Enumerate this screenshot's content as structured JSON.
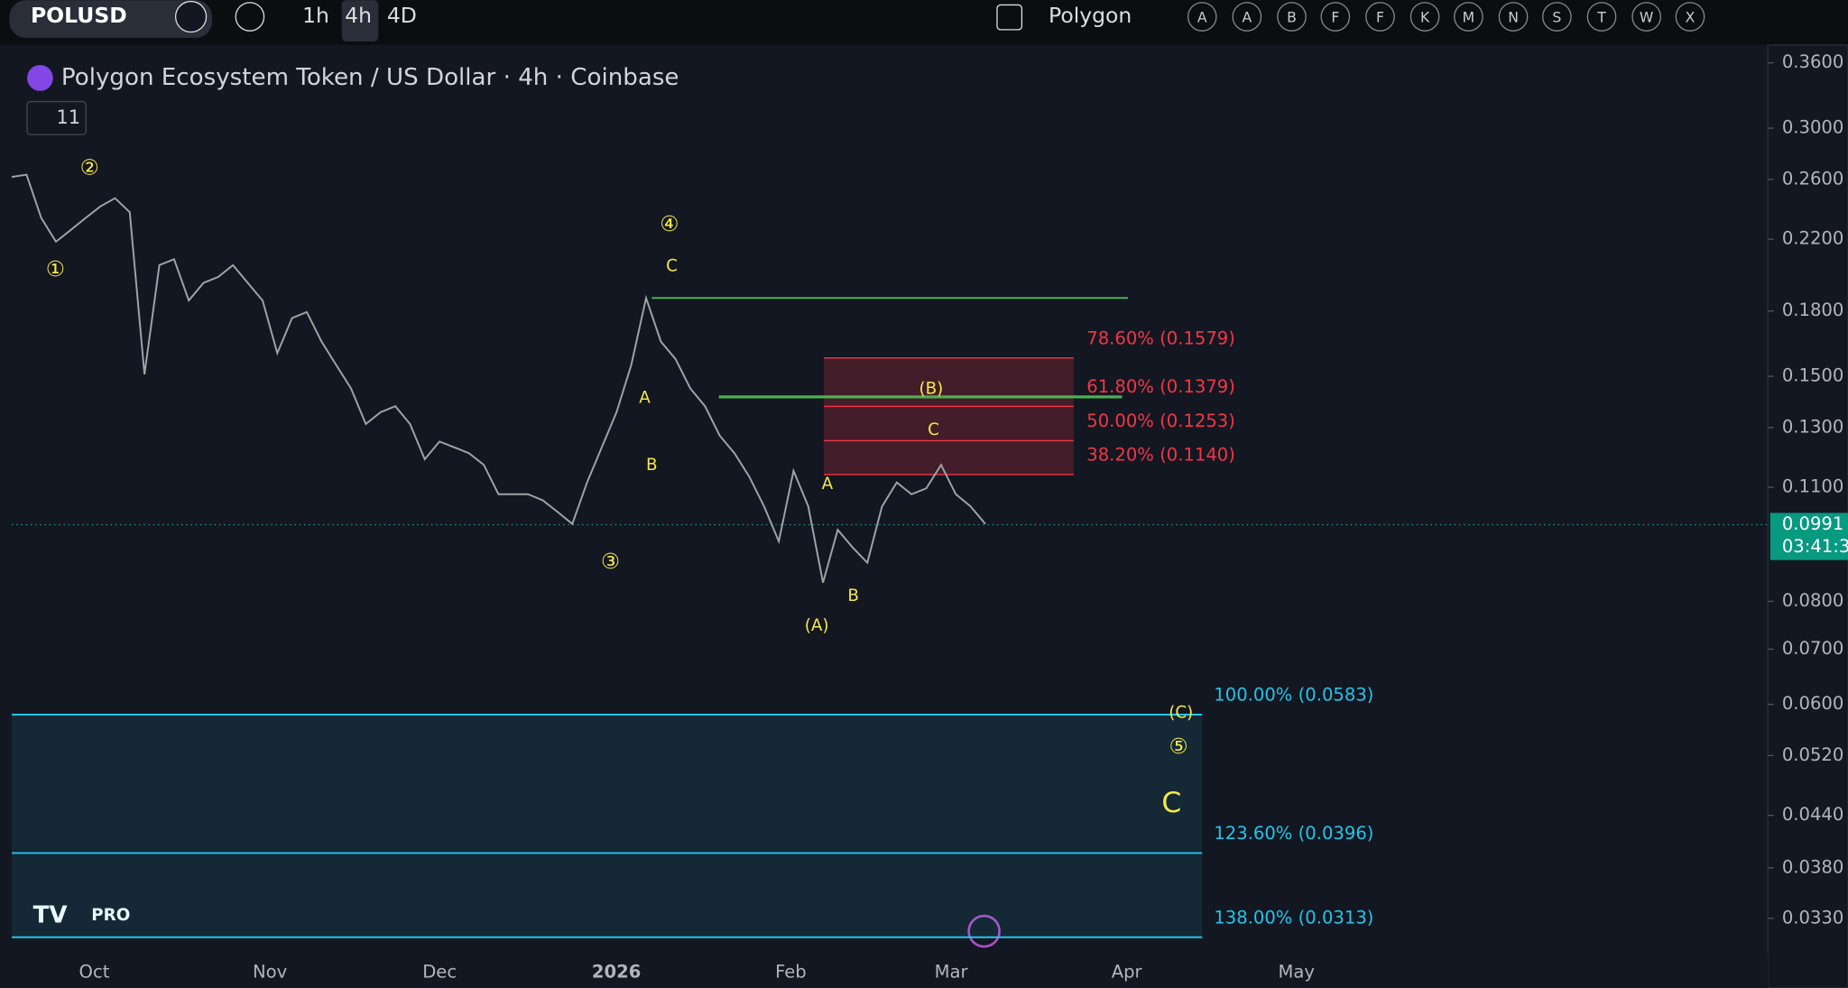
{
  "toolbar": {
    "symbol": "POLUSD",
    "intervals": [
      "1h",
      "4h",
      "4D"
    ],
    "drawing_set": "Polygon",
    "letters": [
      "A",
      "A",
      "B",
      "F",
      "F",
      "K",
      "M",
      "N",
      "S",
      "T",
      "W",
      "X"
    ]
  },
  "legend": {
    "indicator_count": "11"
  },
  "badge": "PRO",
  "chart_data": {
    "type": "line",
    "title": "Polygon Ecosystem Token / US Dollar · 4h · Coinbase",
    "x_labels": [
      "Oct",
      "Nov",
      "Dec",
      "2026",
      "Feb",
      "Mar",
      "Apr",
      "May"
    ],
    "log_scale": true,
    "grid": false,
    "color": "#9aa7a4",
    "values": [
      0.2618,
      0.2635,
      0.2334,
      0.2185,
      0.2258,
      0.2334,
      0.2411,
      0.2467,
      0.2372,
      0.1508,
      0.2046,
      0.208,
      0.1854,
      0.1948,
      0.198,
      0.2046,
      0.1948,
      0.1854,
      0.16,
      0.1765,
      0.1795,
      0.1653,
      0.1548,
      0.145,
      0.1313,
      0.1357,
      0.138,
      0.1313,
      0.119,
      0.125,
      0.123,
      0.121,
      0.1171,
      0.1079,
      0.1079,
      0.1079,
      0.1061,
      0.1027,
      0.0993,
      0.1115,
      0.123,
      0.1357,
      0.1548,
      0.1867,
      0.1653,
      0.1574,
      0.145,
      0.138,
      0.1271,
      0.121,
      0.1133,
      0.1043,
      0.0946,
      0.1152,
      0.1043,
      0.0843,
      0.0977,
      0.093,
      0.0891,
      0.1043,
      0.1115,
      0.1079,
      0.1097,
      0.1171,
      0.1079,
      0.1043,
      0.0993
    ],
    "ylim": [
      0.03,
      0.376
    ],
    "yticks": [
      {
        "value": 0.36,
        "label": "0.3600"
      },
      {
        "value": 0.3,
        "label": "0.3000"
      },
      {
        "value": 0.26,
        "label": "0.2600"
      },
      {
        "value": 0.22,
        "label": "0.2200"
      },
      {
        "value": 0.18,
        "label": "0.1800"
      },
      {
        "value": 0.15,
        "label": "0.1500"
      },
      {
        "value": 0.13,
        "label": "0.1300"
      },
      {
        "value": 0.11,
        "label": "0.1100"
      },
      {
        "value": 0.08,
        "label": "0.0800"
      },
      {
        "value": 0.07,
        "label": "0.0700"
      },
      {
        "value": 0.06,
        "label": "0.0600"
      },
      {
        "value": 0.052,
        "label": "0.0520"
      },
      {
        "value": 0.044,
        "label": "0.0440"
      },
      {
        "value": 0.038,
        "label": "0.0380"
      },
      {
        "value": 0.033,
        "label": "0.0330"
      }
    ],
    "last_price": {
      "value": 0.0991,
      "label": "0.0991"
    },
    "countdown": "03:41:3",
    "retracement": {
      "color": "#f23645",
      "levels": [
        {
          "value": 0.1579,
          "label": "78.60% (0.1579)"
        },
        {
          "value": 0.1379,
          "label": "61.80% (0.1379)"
        },
        {
          "value": 0.1253,
          "label": "50.00% (0.1253)"
        },
        {
          "value": 0.114,
          "label": "38.20% (0.1140)"
        }
      ]
    },
    "extension": {
      "color": "#22c5e8",
      "levels": [
        {
          "value": 0.0583,
          "label": "100.00% (0.0583)"
        },
        {
          "value": 0.0396,
          "label": "123.60% (0.0396)"
        },
        {
          "value": 0.0313,
          "label": "138.00% (0.0313)"
        }
      ]
    },
    "trend_lines": {
      "color": "#4caf50",
      "values": [
        0.1867,
        0.1416
      ]
    },
    "wave_labels": [
      "②",
      "①",
      "④",
      "C",
      "A",
      "B",
      "③",
      "(B)",
      "C",
      "A",
      "B",
      "(A)",
      "(C)",
      "⑤",
      "C"
    ]
  }
}
